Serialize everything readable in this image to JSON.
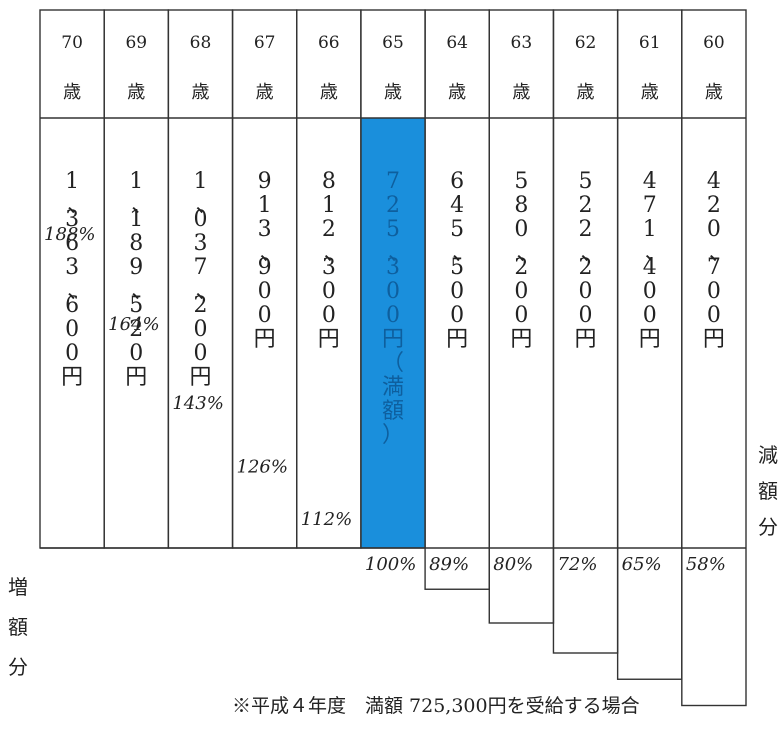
{
  "chart_data": {
    "type": "bar",
    "categories": [
      "70",
      "69",
      "68",
      "67",
      "66",
      "65",
      "64",
      "63",
      "62",
      "61",
      "60"
    ],
    "age_unit": "歳",
    "amounts_vertical": [
      "1、363、600円",
      "1、189、520円",
      "1、037、200円",
      "913、900円",
      "812、300円",
      "725、300円",
      "645、500円",
      "580、200円",
      "522、200円",
      "471、400円",
      "420、700円"
    ],
    "full_note": "（満額）",
    "values": [
      1363600,
      1189520,
      1037200,
      913900,
      812300,
      725300,
      645500,
      580200,
      522200,
      471400,
      420700
    ],
    "percents": [
      "188%",
      "164%",
      "143%",
      "126%",
      "112%",
      "100%",
      "89%",
      "80%",
      "72%",
      "65%",
      "58%"
    ],
    "ratios": [
      1.88,
      1.64,
      1.43,
      1.26,
      1.12,
      1.0,
      0.89,
      0.8,
      0.72,
      0.65,
      0.58
    ],
    "highlight_index": 5,
    "increase_label": "増額分",
    "decrease_label": "減額分",
    "footnote": "※平成４年度　満額 725,300円を受給する場合",
    "colors": {
      "highlight": "#1a8fdc",
      "line": "#333333",
      "background": "#ffffff"
    }
  }
}
